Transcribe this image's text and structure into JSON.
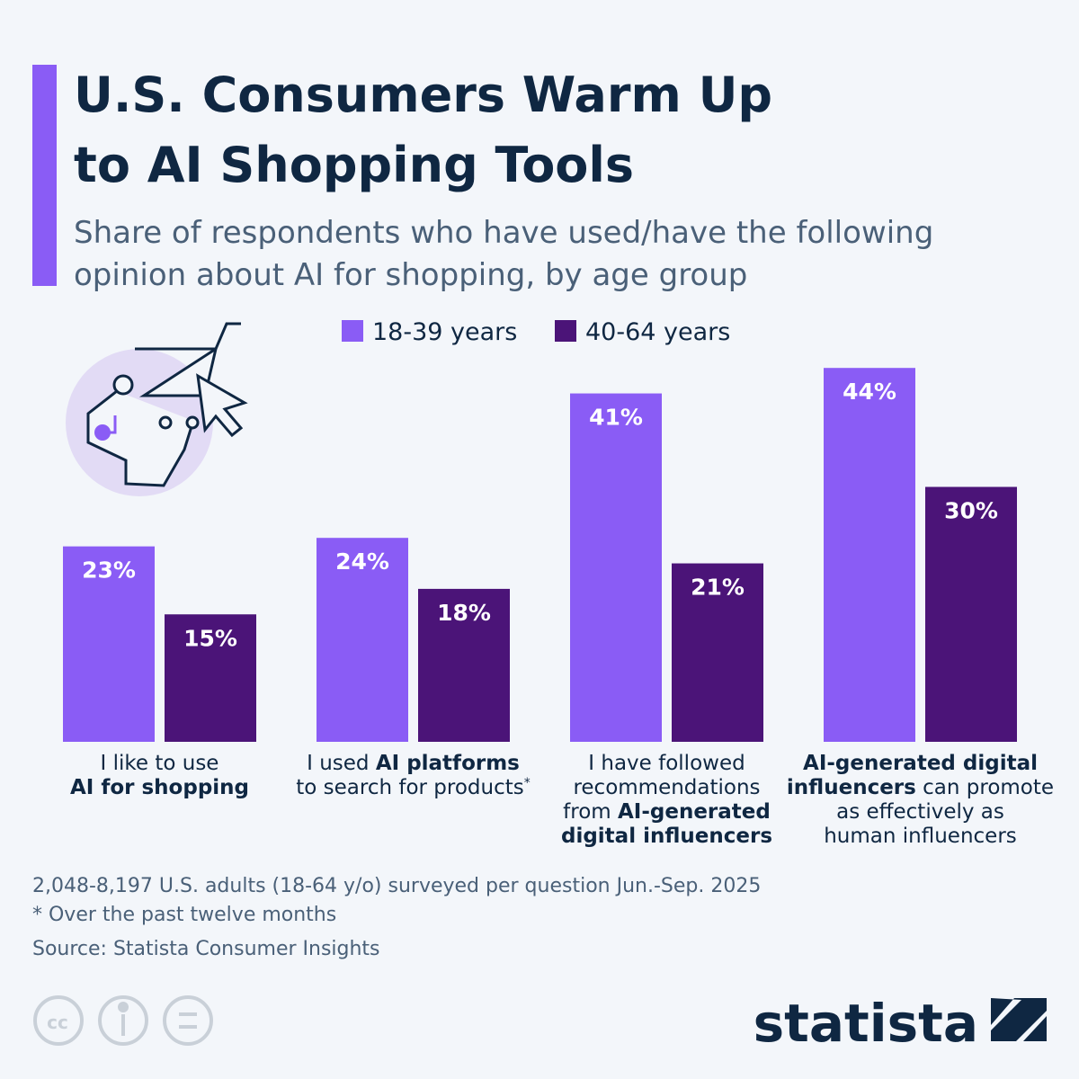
{
  "chart_data": {
    "type": "bar",
    "title": [
      "U.S. Consumers Warm Up",
      "to AI Shopping Tools"
    ],
    "subtitle": [
      "Share of respondents who have used/have the following",
      "opinion about AI for shopping, by age group"
    ],
    "categories": [
      [
        [
          {
            "text": "I like to use",
            "bold": false
          }
        ],
        [
          {
            "text": "AI for shopping",
            "bold": true
          }
        ]
      ],
      [
        [
          {
            "text": "I used ",
            "bold": false
          },
          {
            "text": "AI platforms",
            "bold": true
          }
        ],
        [
          {
            "text": "to search for products",
            "bold": false
          },
          {
            "text": "*",
            "bold": false,
            "sup": true
          }
        ]
      ],
      [
        [
          {
            "text": "I have followed",
            "bold": false
          }
        ],
        [
          {
            "text": "recommendations",
            "bold": false
          }
        ],
        [
          {
            "text": "from ",
            "bold": false
          },
          {
            "text": "AI-generated",
            "bold": true
          }
        ],
        [
          {
            "text": "digital influencers",
            "bold": true
          }
        ]
      ],
      [
        [
          {
            "text": "AI-generated digital",
            "bold": true
          }
        ],
        [
          {
            "text": "influencers",
            "bold": true
          },
          {
            "text": " can promote",
            "bold": false
          }
        ],
        [
          {
            "text": "as effectively as",
            "bold": false
          }
        ],
        [
          {
            "text": "human influencers",
            "bold": false
          }
        ]
      ]
    ],
    "series": [
      {
        "name": "18-39 years",
        "color": "#8a5cf5",
        "values": [
          23,
          24,
          41,
          44
        ],
        "value_labels": [
          "23%",
          "24%",
          "41%",
          "44%"
        ]
      },
      {
        "name": "40-64 years",
        "color": "#4b1478",
        "values": [
          15,
          18,
          21,
          30
        ],
        "value_labels": [
          "15%",
          "18%",
          "21%",
          "30%"
        ]
      }
    ],
    "notes": [
      "2,048-8,197 U.S. adults (18-64 y/o) surveyed per question Jun.-Sep. 2025",
      "* Over the past twelve months",
      "Source: Statista Consumer Insights"
    ],
    "brand": "statista"
  }
}
